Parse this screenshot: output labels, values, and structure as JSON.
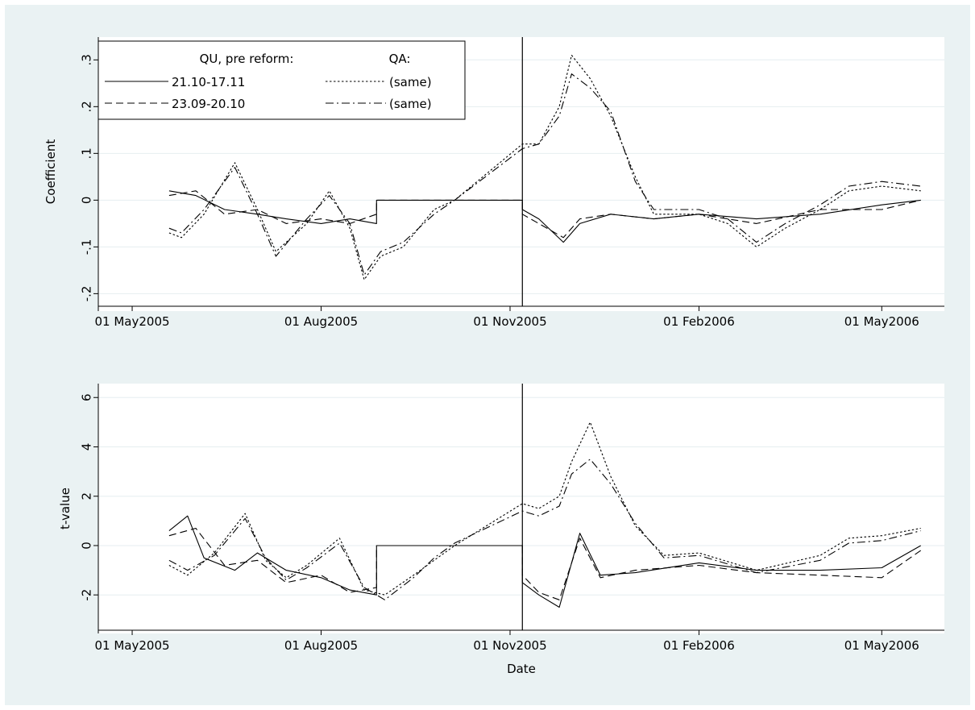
{
  "chart_data": [
    {
      "type": "line",
      "panel": "top",
      "ylabel": "Coefficient",
      "xlabel": "",
      "ylim": [
        -0.22,
        0.335
      ],
      "yticks": [
        -0.2,
        -0.1,
        0,
        0.1,
        0.2,
        0.3
      ],
      "ytick_labels": [
        "-.2",
        "-.1",
        "0",
        ".1",
        ".2",
        ".3"
      ],
      "xlim": [
        "2005-04-20",
        "2006-05-26"
      ],
      "xticks": [
        "2005-05-01",
        "2005-08-01",
        "2005-11-01",
        "2006-02-01",
        "2006-05-01"
      ],
      "xtick_labels": [
        "01 May2005",
        "01 Aug2005",
        "01 Nov2005",
        "01 Feb2006",
        "01 May2006"
      ],
      "grid": true,
      "reform_date": "2005-11-07",
      "legend": {
        "placement": "top-left",
        "qu_header": "QU, pre reform:",
        "qa_header": "QA:",
        "entries": [
          "21.10-17.11",
          "23.09-20.10",
          "(same)",
          "(same)"
        ]
      },
      "series": [
        {
          "style": "solid",
          "x": [
            "2005-05-19",
            "2005-06-01",
            "2005-06-15",
            "2005-07-01",
            "2005-07-15",
            "2005-08-01",
            "2005-08-15",
            "2005-08-28",
            "2005-08-28",
            "2005-10-01",
            "2005-11-07",
            "2005-11-07",
            "2005-11-15",
            "2005-11-27",
            "2005-12-05",
            "2005-12-20",
            "2006-01-10",
            "2006-02-01",
            "2006-03-01",
            "2006-04-01",
            "2006-05-01",
            "2006-05-20"
          ],
          "y": [
            0.02,
            0.01,
            -0.02,
            -0.03,
            -0.04,
            -0.05,
            -0.04,
            -0.05,
            0.0,
            0.0,
            0.0,
            -0.02,
            -0.04,
            -0.09,
            -0.05,
            -0.03,
            -0.04,
            -0.03,
            -0.04,
            -0.03,
            -0.01,
            0.0
          ]
        },
        {
          "style": "dashed",
          "x": [
            "2005-05-19",
            "2005-06-01",
            "2005-06-15",
            "2005-07-01",
            "2005-07-15",
            "2005-08-01",
            "2005-08-15",
            "2005-08-28",
            "2005-08-28",
            "2005-09-15",
            "2005-10-01",
            "2005-11-07",
            "2005-11-07",
            "2005-11-15",
            "2005-11-27",
            "2005-12-05",
            "2005-12-20",
            "2006-01-10",
            "2006-02-01",
            "2006-03-01",
            "2006-04-01",
            "2006-05-01",
            "2006-05-20"
          ],
          "y": [
            0.01,
            0.02,
            -0.03,
            -0.02,
            -0.05,
            -0.04,
            -0.05,
            -0.03,
            0.0,
            0.0,
            0.0,
            0.0,
            -0.03,
            -0.05,
            -0.08,
            -0.04,
            -0.03,
            -0.04,
            -0.03,
            -0.05,
            -0.02,
            -0.02,
            0.0
          ]
        },
        {
          "style": "dotted",
          "x": [
            "2005-05-19",
            "2005-05-25",
            "2005-06-05",
            "2005-06-20",
            "2005-07-01",
            "2005-07-10",
            "2005-07-25",
            "2005-08-05",
            "2005-08-15",
            "2005-08-22",
            "2005-08-30",
            "2005-09-10",
            "2005-09-25",
            "2005-10-05",
            "2005-11-07",
            "2005-11-15",
            "2005-11-25",
            "2005-12-01",
            "2005-12-10",
            "2005-12-20",
            "2006-01-01",
            "2006-01-10",
            "2006-01-20",
            "2006-02-01",
            "2006-02-15",
            "2006-03-01",
            "2006-03-15",
            "2006-04-01",
            "2006-04-15",
            "2006-05-01",
            "2006-05-20"
          ],
          "y": [
            -0.07,
            -0.08,
            -0.03,
            0.08,
            -0.02,
            -0.11,
            -0.05,
            0.02,
            -0.06,
            -0.17,
            -0.12,
            -0.1,
            -0.02,
            0.0,
            0.12,
            0.12,
            0.2,
            0.31,
            0.26,
            0.18,
            0.05,
            -0.03,
            -0.03,
            -0.03,
            -0.05,
            -0.1,
            -0.06,
            -0.02,
            0.02,
            0.03,
            0.02
          ]
        },
        {
          "style": "dashdot",
          "x": [
            "2005-05-19",
            "2005-05-25",
            "2005-06-05",
            "2005-06-20",
            "2005-07-01",
            "2005-07-10",
            "2005-07-25",
            "2005-08-05",
            "2005-08-15",
            "2005-08-22",
            "2005-08-30",
            "2005-09-10",
            "2005-09-25",
            "2005-10-05",
            "2005-11-07",
            "2005-11-15",
            "2005-11-25",
            "2005-12-01",
            "2005-12-10",
            "2005-12-20",
            "2006-01-01",
            "2006-01-10",
            "2006-01-20",
            "2006-02-01",
            "2006-02-15",
            "2006-03-01",
            "2006-03-15",
            "2006-04-01",
            "2006-04-15",
            "2006-05-01",
            "2006-05-20"
          ],
          "y": [
            -0.06,
            -0.07,
            -0.02,
            0.07,
            -0.03,
            -0.12,
            -0.04,
            0.01,
            -0.05,
            -0.16,
            -0.11,
            -0.09,
            -0.03,
            0.0,
            0.11,
            0.12,
            0.18,
            0.27,
            0.24,
            0.19,
            0.04,
            -0.02,
            -0.02,
            -0.02,
            -0.04,
            -0.09,
            -0.05,
            -0.01,
            0.03,
            0.04,
            0.03
          ]
        }
      ]
    },
    {
      "type": "line",
      "panel": "bottom",
      "ylabel": "t-value",
      "xlabel": "Date",
      "ylim": [
        -3.3,
        6.4
      ],
      "yticks": [
        -2,
        0,
        2,
        4,
        6
      ],
      "ytick_labels": [
        "-2",
        "0",
        "2",
        "4",
        "6"
      ],
      "xlim": [
        "2005-04-20",
        "2006-05-26"
      ],
      "xticks": [
        "2005-05-01",
        "2005-08-01",
        "2005-11-01",
        "2006-02-01",
        "2006-05-01"
      ],
      "xtick_labels": [
        "01 May2005",
        "01 Aug2005",
        "01 Nov2005",
        "01 Feb2006",
        "01 May2006"
      ],
      "grid": true,
      "reform_date": "2005-11-07",
      "series": [
        {
          "style": "solid",
          "x": [
            "2005-05-19",
            "2005-05-28",
            "2005-06-05",
            "2005-06-20",
            "2005-07-01",
            "2005-07-15",
            "2005-08-01",
            "2005-08-15",
            "2005-08-28",
            "2005-08-28",
            "2005-09-15",
            "2005-10-01",
            "2005-11-07",
            "2005-11-07",
            "2005-11-15",
            "2005-11-25",
            "2005-12-05",
            "2005-12-15",
            "2006-01-01",
            "2006-02-01",
            "2006-03-01",
            "2006-04-01",
            "2006-05-01",
            "2006-05-20"
          ],
          "y": [
            0.6,
            1.2,
            -0.5,
            -1.0,
            -0.3,
            -1.0,
            -1.3,
            -1.8,
            -2.0,
            0.0,
            0.0,
            0.0,
            0.0,
            -1.5,
            -2.0,
            -2.5,
            0.5,
            -1.2,
            -1.1,
            -0.7,
            -1.0,
            -1.0,
            -0.9,
            0.0
          ]
        },
        {
          "style": "dashed",
          "x": [
            "2005-05-19",
            "2005-06-01",
            "2005-06-15",
            "2005-07-01",
            "2005-07-15",
            "2005-08-01",
            "2005-08-15",
            "2005-08-28",
            "2005-08-28",
            "2005-09-15",
            "2005-10-01",
            "2005-11-07",
            "2005-11-07",
            "2005-11-15",
            "2005-11-25",
            "2005-12-05",
            "2005-12-15",
            "2006-01-01",
            "2006-02-01",
            "2006-03-01",
            "2006-04-01",
            "2006-05-01",
            "2006-05-20"
          ],
          "y": [
            0.4,
            0.7,
            -0.8,
            -0.6,
            -1.5,
            -1.2,
            -1.9,
            -1.7,
            0.0,
            0.0,
            0.0,
            0.0,
            -1.2,
            -1.9,
            -2.2,
            0.3,
            -1.3,
            -1.0,
            -0.8,
            -1.1,
            -1.2,
            -1.3,
            -0.2
          ]
        },
        {
          "style": "dotted",
          "x": [
            "2005-05-19",
            "2005-05-28",
            "2005-06-10",
            "2005-06-25",
            "2005-07-05",
            "2005-07-15",
            "2005-07-25",
            "2005-08-10",
            "2005-08-22",
            "2005-09-01",
            "2005-09-15",
            "2005-09-25",
            "2005-10-05",
            "2005-11-07",
            "2005-11-15",
            "2005-11-25",
            "2005-12-01",
            "2005-12-10",
            "2005-12-20",
            "2006-01-01",
            "2006-01-15",
            "2006-02-01",
            "2006-03-01",
            "2006-04-01",
            "2006-04-15",
            "2006-05-01",
            "2006-05-20"
          ],
          "y": [
            -0.8,
            -1.2,
            -0.3,
            1.3,
            -0.6,
            -1.3,
            -0.8,
            0.3,
            -1.8,
            -2.0,
            -1.2,
            -0.6,
            0.0,
            1.7,
            1.5,
            2.0,
            3.4,
            5.0,
            2.8,
            0.8,
            -0.4,
            -0.3,
            -1.0,
            -0.4,
            0.3,
            0.4,
            0.7
          ]
        },
        {
          "style": "dashdot",
          "x": [
            "2005-05-19",
            "2005-05-28",
            "2005-06-10",
            "2005-06-25",
            "2005-07-05",
            "2005-07-15",
            "2005-07-25",
            "2005-08-10",
            "2005-08-22",
            "2005-09-01",
            "2005-09-15",
            "2005-09-25",
            "2005-10-05",
            "2005-11-07",
            "2005-11-15",
            "2005-11-25",
            "2005-12-01",
            "2005-12-10",
            "2005-12-20",
            "2006-01-01",
            "2006-01-15",
            "2006-02-01",
            "2006-03-01",
            "2006-04-01",
            "2006-04-15",
            "2006-05-01",
            "2006-05-20"
          ],
          "y": [
            -0.6,
            -1.0,
            -0.4,
            1.1,
            -0.5,
            -1.4,
            -0.9,
            0.1,
            -1.7,
            -2.2,
            -1.3,
            -0.5,
            0.1,
            1.4,
            1.2,
            1.6,
            2.9,
            3.5,
            2.5,
            0.9,
            -0.5,
            -0.4,
            -1.1,
            -0.6,
            0.1,
            0.2,
            0.6
          ]
        }
      ]
    }
  ]
}
